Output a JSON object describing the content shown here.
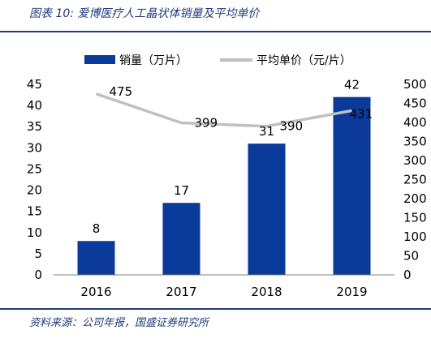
{
  "figure": {
    "title": "图表 10:  爱博医疗人工晶状体销量及平均单价",
    "source": "资料来源：公司年报，国盛证券研究所"
  },
  "colors": {
    "bar": "#0a3a9a",
    "line": "#c0c0c0",
    "rule": "#1f3b7a"
  },
  "chart_data": {
    "type": "bar",
    "categories": [
      "2016",
      "2017",
      "2018",
      "2019"
    ],
    "series": [
      {
        "name": "销量（万片）",
        "type": "bar",
        "axis": "left",
        "values": [
          8,
          17,
          31,
          42
        ]
      },
      {
        "name": "平均单价（元/片）",
        "type": "line",
        "axis": "right",
        "values": [
          475,
          399,
          390,
          431
        ]
      }
    ],
    "ylim_left": [
      0,
      45
    ],
    "yticks_left": [
      0,
      5,
      10,
      15,
      20,
      25,
      30,
      35,
      40,
      45
    ],
    "ylim_right": [
      0,
      500
    ],
    "yticks_right": [
      0,
      50,
      100,
      150,
      200,
      250,
      300,
      350,
      400,
      450,
      500
    ],
    "legend_position": "top",
    "grid": false
  }
}
